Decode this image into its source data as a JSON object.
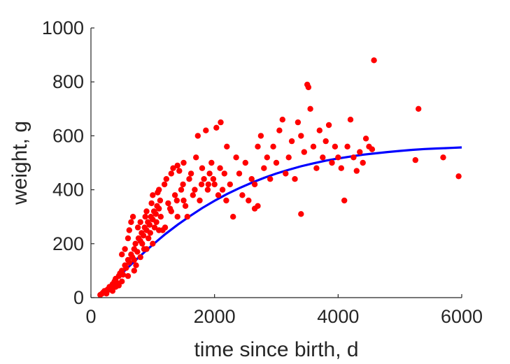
{
  "chart_data": {
    "type": "scatter",
    "xlabel": "time since birth, d",
    "ylabel": "weight, g",
    "xlim": [
      0,
      6000
    ],
    "ylim": [
      0,
      1000
    ],
    "x_ticks": [
      0,
      2000,
      4000,
      6000
    ],
    "y_ticks": [
      0,
      200,
      400,
      600,
      800,
      1000
    ],
    "grid": false,
    "series": [
      {
        "type": "scatter",
        "color": "#ff0000",
        "points": [
          [
            150,
            10
          ],
          [
            180,
            15
          ],
          [
            200,
            20
          ],
          [
            220,
            25
          ],
          [
            250,
            18
          ],
          [
            270,
            30
          ],
          [
            300,
            40
          ],
          [
            320,
            35
          ],
          [
            350,
            50
          ],
          [
            380,
            60
          ],
          [
            400,
            70
          ],
          [
            420,
            55
          ],
          [
            450,
            80
          ],
          [
            470,
            90
          ],
          [
            500,
            100
          ],
          [
            520,
            85
          ],
          [
            550,
            120
          ],
          [
            570,
            110
          ],
          [
            600,
            140
          ],
          [
            620,
            130
          ],
          [
            650,
            160
          ],
          [
            670,
            150
          ],
          [
            700,
            180
          ],
          [
            720,
            200
          ],
          [
            750,
            170
          ],
          [
            770,
            220
          ],
          [
            800,
            210
          ],
          [
            820,
            240
          ],
          [
            850,
            230
          ],
          [
            870,
            260
          ],
          [
            900,
            250
          ],
          [
            920,
            280
          ],
          [
            950,
            270
          ],
          [
            970,
            300
          ],
          [
            1000,
            290
          ],
          [
            1020,
            320
          ],
          [
            1050,
            310
          ],
          [
            1070,
            340
          ],
          [
            1100,
            330
          ],
          [
            1120,
            360
          ],
          [
            500,
            160
          ],
          [
            550,
            180
          ],
          [
            600,
            220
          ],
          [
            620,
            250
          ],
          [
            650,
            280
          ],
          [
            680,
            300
          ],
          [
            700,
            140
          ],
          [
            730,
            120
          ],
          [
            760,
            260
          ],
          [
            800,
            280
          ],
          [
            830,
            200
          ],
          [
            860,
            180
          ],
          [
            880,
            300
          ],
          [
            900,
            320
          ],
          [
            930,
            220
          ],
          [
            960,
            240
          ],
          [
            980,
            350
          ],
          [
            1000,
            380
          ],
          [
            1030,
            260
          ],
          [
            1060,
            280
          ],
          [
            1080,
            390
          ],
          [
            1100,
            400
          ],
          [
            1130,
            300
          ],
          [
            1160,
            250
          ],
          [
            1190,
            420
          ],
          [
            1220,
            440
          ],
          [
            1250,
            350
          ],
          [
            1280,
            330
          ],
          [
            1300,
            460
          ],
          [
            1330,
            480
          ],
          [
            1360,
            380
          ],
          [
            1390,
            360
          ],
          [
            1400,
            490
          ],
          [
            1430,
            470
          ],
          [
            1460,
            400
          ],
          [
            1490,
            420
          ],
          [
            1500,
            500
          ],
          [
            1530,
            340
          ],
          [
            1560,
            300
          ],
          [
            1590,
            440
          ],
          [
            1620,
            460
          ],
          [
            1650,
            380
          ],
          [
            1680,
            400
          ],
          [
            1700,
            520
          ],
          [
            1730,
            600
          ],
          [
            1760,
            360
          ],
          [
            1790,
            420
          ],
          [
            1800,
            480
          ],
          [
            1830,
            440
          ],
          [
            1860,
            620
          ],
          [
            1890,
            400
          ],
          [
            1920,
            460
          ],
          [
            1950,
            500
          ],
          [
            1980,
            440
          ],
          [
            2000,
            420
          ],
          [
            2030,
            630
          ],
          [
            2060,
            380
          ],
          [
            2090,
            480
          ],
          [
            2100,
            650
          ],
          [
            2130,
            400
          ],
          [
            2160,
            460
          ],
          [
            2190,
            360
          ],
          [
            2200,
            560
          ],
          [
            2250,
            420
          ],
          [
            2300,
            300
          ],
          [
            2350,
            520
          ],
          [
            2400,
            460
          ],
          [
            2450,
            380
          ],
          [
            2500,
            500
          ],
          [
            2550,
            360
          ],
          [
            2600,
            440
          ],
          [
            2650,
            420
          ],
          [
            2700,
            560
          ],
          [
            2750,
            600
          ],
          [
            2800,
            480
          ],
          [
            2850,
            520
          ],
          [
            2900,
            440
          ],
          [
            2950,
            560
          ],
          [
            3000,
            500
          ],
          [
            3050,
            620
          ],
          [
            3100,
            660
          ],
          [
            3150,
            460
          ],
          [
            3200,
            520
          ],
          [
            3250,
            580
          ],
          [
            3300,
            440
          ],
          [
            3350,
            650
          ],
          [
            3400,
            600
          ],
          [
            3450,
            540
          ],
          [
            3500,
            790
          ],
          [
            3520,
            780
          ],
          [
            3550,
            700
          ],
          [
            3600,
            560
          ],
          [
            3650,
            480
          ],
          [
            3700,
            620
          ],
          [
            3750,
            520
          ],
          [
            3800,
            580
          ],
          [
            3850,
            640
          ],
          [
            3900,
            500
          ],
          [
            3950,
            560
          ],
          [
            4000,
            520
          ],
          [
            4050,
            480
          ],
          [
            4100,
            360
          ],
          [
            4150,
            560
          ],
          [
            4200,
            660
          ],
          [
            4250,
            520
          ],
          [
            4300,
            470
          ],
          [
            4350,
            540
          ],
          [
            4400,
            500
          ],
          [
            4450,
            590
          ],
          [
            4500,
            560
          ],
          [
            4550,
            550
          ],
          [
            4580,
            880
          ],
          [
            5250,
            510
          ],
          [
            5300,
            700
          ],
          [
            5700,
            520
          ],
          [
            5950,
            450
          ],
          [
            2700,
            340
          ],
          [
            2650,
            330
          ],
          [
            3400,
            310
          ],
          [
            1900,
            420
          ],
          [
            1500,
            360
          ],
          [
            1400,
            300
          ],
          [
            1300,
            320
          ],
          [
            1200,
            260
          ],
          [
            1100,
            250
          ],
          [
            1000,
            200
          ],
          [
            900,
            180
          ],
          [
            800,
            150
          ],
          [
            700,
            100
          ],
          [
            600,
            80
          ],
          [
            500,
            60
          ],
          [
            400,
            40
          ],
          [
            300,
            30
          ],
          [
            250,
            15
          ],
          [
            350,
            25
          ],
          [
            450,
            45
          ]
        ]
      },
      {
        "type": "line",
        "color": "#0000ff",
        "x": [
          150,
          200,
          300,
          400,
          500,
          600,
          700,
          800,
          900,
          1000,
          1200,
          1400,
          1600,
          1800,
          2000,
          2200,
          2400,
          2600,
          2800,
          3000,
          3200,
          3400,
          3600,
          3800,
          4000,
          4200,
          4400,
          4600,
          4800,
          5000,
          5200,
          5400,
          5600,
          5800,
          6000
        ],
        "y": [
          10,
          20,
          44,
          67,
          89,
          112,
          134,
          155,
          176,
          196,
          235,
          270,
          302,
          332,
          359,
          384,
          406,
          426,
          444,
          460,
          474,
          487,
          498,
          508,
          516,
          523,
          530,
          535,
          540,
          544,
          548,
          551,
          553,
          555,
          557
        ]
      }
    ]
  }
}
